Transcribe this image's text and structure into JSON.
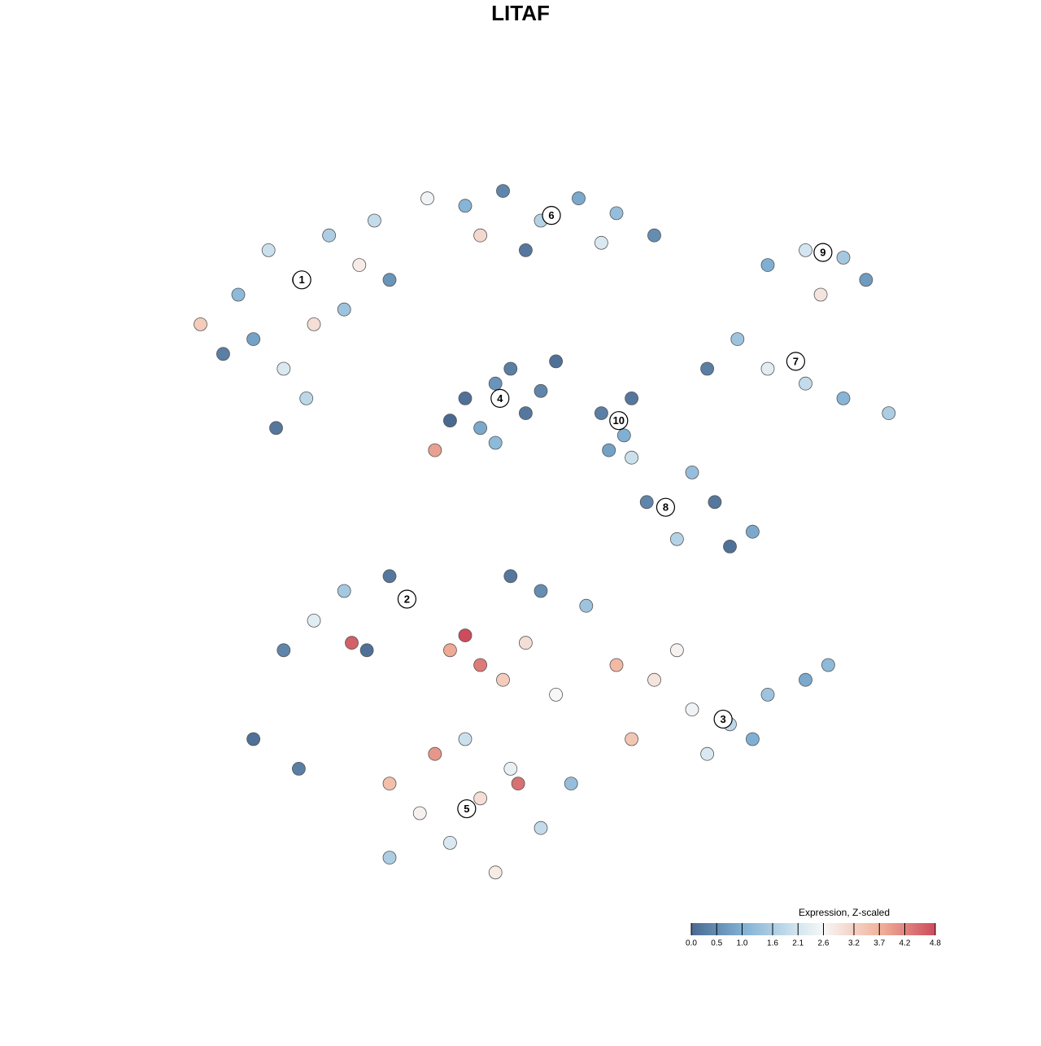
{
  "chart_data": {
    "type": "scatter",
    "title": "LITAF",
    "xlim": [
      0,
      100
    ],
    "ylim": [
      0,
      100
    ],
    "x": [
      10,
      14,
      18,
      22,
      26,
      12,
      16,
      20,
      24,
      8,
      28,
      30,
      15,
      19,
      5,
      40,
      45,
      50,
      55,
      60,
      48,
      58,
      35,
      65,
      42,
      80,
      85,
      90,
      93,
      87,
      76,
      80,
      85,
      90,
      96,
      72,
      40,
      44,
      48,
      42,
      46,
      38,
      50,
      44,
      36,
      52,
      58,
      61,
      62,
      59,
      70,
      73,
      78,
      64,
      68,
      75,
      62,
      20,
      24,
      27,
      16,
      25,
      30,
      12,
      18,
      65,
      70,
      75,
      80,
      85,
      72,
      78,
      62,
      68,
      60,
      88,
      40,
      42,
      38,
      45,
      48,
      52,
      56,
      50,
      46,
      30,
      34,
      38,
      42,
      46,
      50,
      36,
      47,
      30,
      44,
      54,
      40
    ],
    "y": [
      80,
      86,
      82,
      88,
      84,
      74,
      70,
      76,
      78,
      72,
      90,
      82,
      62,
      66,
      76,
      92,
      94,
      90,
      93,
      91,
      86,
      87,
      93,
      88,
      88,
      84,
      86,
      85,
      82,
      80,
      74,
      70,
      68,
      66,
      64,
      70,
      66,
      68,
      64,
      62,
      70,
      63,
      67,
      60,
      59,
      71,
      64,
      61,
      66,
      59,
      56,
      52,
      48,
      52,
      47,
      46,
      58,
      36,
      40,
      32,
      32,
      33,
      42,
      20,
      16,
      28,
      24,
      22,
      26,
      28,
      18,
      20,
      20,
      32,
      30,
      30,
      34,
      30,
      32,
      28,
      33,
      26,
      38,
      40,
      42,
      14,
      10,
      6,
      12,
      16,
      8,
      18,
      14,
      4,
      2,
      14,
      20
    ],
    "values": [
      1.2,
      2.0,
      2.4,
      1.6,
      2.8,
      0.8,
      2.2,
      3.0,
      1.4,
      0.3,
      1.9,
      0.6,
      0.2,
      1.8,
      3.3,
      1.1,
      0.4,
      1.7,
      0.9,
      1.3,
      0.2,
      2.2,
      2.5,
      0.5,
      3.1,
      1.0,
      2.1,
      1.5,
      0.7,
      2.9,
      1.4,
      2.3,
      1.9,
      1.1,
      1.6,
      0.3,
      0.1,
      0.6,
      0.2,
      0.9,
      0.3,
      0.0,
      0.4,
      1.2,
      3.9,
      0.1,
      0.3,
      1.0,
      0.2,
      0.8,
      1.3,
      0.2,
      0.9,
      0.4,
      1.7,
      0.1,
      2.0,
      2.3,
      1.5,
      0.1,
      0.4,
      4.6,
      0.2,
      0.1,
      0.3,
      2.9,
      2.5,
      1.8,
      1.4,
      0.9,
      2.2,
      1.0,
      3.4,
      2.7,
      3.6,
      1.2,
      4.8,
      4.3,
      3.8,
      3.3,
      3.0,
      2.6,
      1.4,
      0.5,
      0.2,
      3.5,
      2.7,
      2.2,
      3.0,
      2.4,
      1.9,
      4.0,
      4.4,
      1.6,
      2.8,
      1.3,
      2.0
    ],
    "clusters": [
      {
        "label": "1",
        "x": 18.4,
        "y": 82.0
      },
      {
        "label": "2",
        "x": 32.3,
        "y": 38.9
      },
      {
        "label": "3",
        "x": 74.1,
        "y": 22.7
      },
      {
        "label": "4",
        "x": 44.6,
        "y": 66.0
      },
      {
        "label": "5",
        "x": 40.2,
        "y": 10.6
      },
      {
        "label": "6",
        "x": 51.4,
        "y": 90.7
      },
      {
        "label": "7",
        "x": 83.7,
        "y": 71.0
      },
      {
        "label": "8",
        "x": 66.5,
        "y": 51.3
      },
      {
        "label": "9",
        "x": 87.3,
        "y": 85.7
      },
      {
        "label": "10",
        "x": 60.3,
        "y": 63.0
      }
    ],
    "colorbar": {
      "title": "Expression, Z-scaled",
      "lim": [
        0,
        4.8
      ],
      "ticks": [
        {
          "value": 0,
          "label": "0.0"
        },
        0.5,
        {
          "value": 1,
          "label": "1.0"
        },
        1.6,
        2.1,
        2.6,
        3.2,
        3.7,
        4.2,
        4.8
      ],
      "colorscale": [
        {
          "value": 0,
          "color": "#4a6990"
        },
        {
          "value": 1,
          "color": "#7fb0d4"
        },
        {
          "value": 2.1,
          "color": "#d3e5f0"
        },
        {
          "value": 2.6,
          "color": "#f7f7f7"
        },
        {
          "value": 3.7,
          "color": "#f1b39b"
        },
        {
          "value": 4.8,
          "color": "#cc4c5c"
        }
      ]
    }
  }
}
